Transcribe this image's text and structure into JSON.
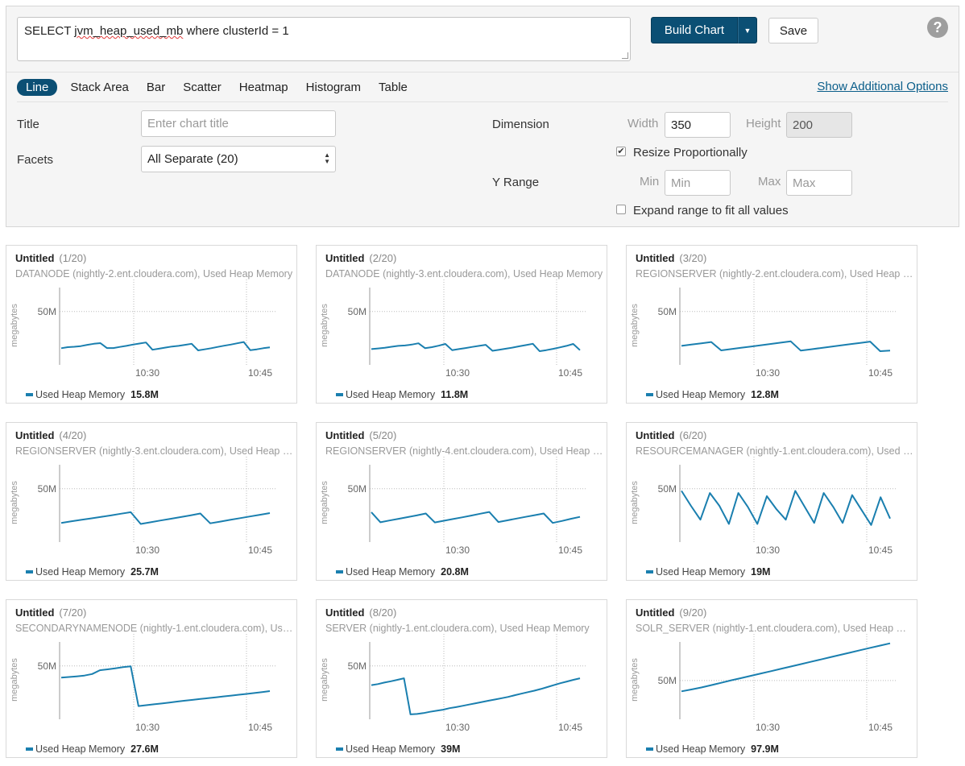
{
  "query": {
    "prefix": "SELECT ",
    "misspelled": "jvm_heap_used_mb",
    "suffix": " where clusterId = 1"
  },
  "toolbar": {
    "build_label": "Build Chart",
    "save_label": "Save",
    "help_glyph": "?"
  },
  "chart_types": [
    "Line",
    "Stack Area",
    "Bar",
    "Scatter",
    "Heatmap",
    "Histogram",
    "Table"
  ],
  "active_chart_type": "Line",
  "additional_options_label": "Show Additional Options",
  "options": {
    "title_label": "Title",
    "title_placeholder": "Enter chart title",
    "facets_label": "Facets",
    "facets_value": "All Separate (20)",
    "dimension_label": "Dimension",
    "width_label": "Width",
    "width_value": "350",
    "height_label": "Height",
    "height_value": "200",
    "resize_label": "Resize Proportionally",
    "resize_checked": true,
    "yrange_label": "Y Range",
    "min_label": "Min",
    "min_placeholder": "Min",
    "max_label": "Max",
    "max_placeholder": "Max",
    "expand_label": "Expand range to fit all values",
    "expand_checked": false
  },
  "colors": {
    "series": "#1a7faf",
    "accent": "#0b4f74",
    "link": "#0b5e8a"
  },
  "chart_data": [
    {
      "type": "line",
      "title": "Untitled",
      "index": "(1/20)",
      "subtitle": "DATANODE (nightly-2.ent.cloudera.com), Used Heap Memory",
      "ylabel": "megabytes",
      "ytick": "50M",
      "xticks": [
        "10:30",
        "10:45"
      ],
      "legend": "Used Heap Memory",
      "legend_value": "15.8M",
      "y": [
        15.6,
        16.6,
        17.0,
        17.6,
        18.8,
        19.8,
        20.4,
        15.8,
        15.8,
        16.8,
        17.8,
        19.0,
        20.0,
        21.0,
        14.2,
        15.2,
        16.2,
        17.2,
        17.8,
        18.8,
        19.8,
        13.6,
        14.6,
        15.6,
        16.8,
        18.0,
        19.0,
        20.2,
        21.4,
        13.8,
        14.6,
        15.6,
        16.4
      ]
    },
    {
      "type": "line",
      "title": "Untitled",
      "index": "(2/20)",
      "subtitle": "DATANODE (nightly-3.ent.cloudera.com), Used Heap Memory",
      "ylabel": "megabytes",
      "ytick": "50M",
      "xticks": [
        "10:30",
        "10:45"
      ],
      "legend": "Used Heap Memory",
      "legend_value": "11.8M",
      "y": [
        14.8,
        15.4,
        16.0,
        17.0,
        17.8,
        18.2,
        19.0,
        20.2,
        15.6,
        16.6,
        18.0,
        19.6,
        13.8,
        14.8,
        15.8,
        16.8,
        17.8,
        18.8,
        13.2,
        14.2,
        15.2,
        16.2,
        17.4,
        18.6,
        19.8,
        12.8,
        13.8,
        15.0,
        16.4,
        17.8,
        19.6,
        13.8
      ]
    },
    {
      "type": "line",
      "title": "Untitled",
      "index": "(3/20)",
      "subtitle": "REGIONSERVER (nightly-2.ent.cloudera.com), Used Heap Memory",
      "ylabel": "megabytes",
      "ytick": "50M",
      "xticks": [
        "10:30",
        "10:45"
      ],
      "legend": "Used Heap Memory",
      "legend_value": "12.8M",
      "y": [
        17.8,
        19.0,
        20.2,
        21.4,
        13.6,
        14.8,
        16.0,
        17.2,
        18.4,
        19.6,
        20.8,
        22.0,
        13.4,
        14.6,
        15.8,
        17.0,
        18.2,
        19.4,
        20.6,
        21.8,
        12.8,
        13.4
      ]
    },
    {
      "type": "line",
      "title": "Untitled",
      "index": "(4/20)",
      "subtitle": "REGIONSERVER (nightly-3.ent.cloudera.com), Used Heap Memory",
      "ylabel": "megabytes",
      "ytick": "50M",
      "xticks": [
        "10:30",
        "10:45"
      ],
      "legend": "Used Heap Memory",
      "legend_value": "25.7M",
      "y": [
        18.0,
        19.4,
        20.8,
        22.2,
        23.6,
        25.0,
        26.6,
        28.0,
        17.0,
        18.6,
        20.2,
        21.8,
        23.4,
        25.0,
        26.8,
        17.6,
        19.2,
        20.8,
        22.4,
        24.0,
        25.6,
        27.2
      ]
    },
    {
      "type": "line",
      "title": "Untitled",
      "index": "(5/20)",
      "subtitle": "REGIONSERVER (nightly-4.ent.cloudera.com), Used Heap Memory",
      "ylabel": "megabytes",
      "ytick": "50M",
      "xticks": [
        "10:30",
        "10:45"
      ],
      "legend": "Used Heap Memory",
      "legend_value": "20.8M",
      "y": [
        28.0,
        18.6,
        20.2,
        21.8,
        23.4,
        25.0,
        26.8,
        18.4,
        20.0,
        21.6,
        23.2,
        24.8,
        26.6,
        28.2,
        18.8,
        20.4,
        22.0,
        23.6,
        25.2,
        26.8,
        18.0,
        19.8,
        21.8,
        23.6
      ]
    },
    {
      "type": "line",
      "title": "Untitled",
      "index": "(6/20)",
      "subtitle": "RESOURCEMANAGER (nightly-1.ent.cloudera.com), Used Heap Memory",
      "ylabel": "megabytes",
      "ytick": "50M",
      "xticks": [
        "10:30",
        "10:45"
      ],
      "legend": "Used Heap Memory",
      "legend_value": "19M",
      "y": [
        48.0,
        34.0,
        21.0,
        46.0,
        34.0,
        17.0,
        46.0,
        33.0,
        17.0,
        43.0,
        31.0,
        21.0,
        48.0,
        33.0,
        18.0,
        46.0,
        33.0,
        18.0,
        44.0,
        30.0,
        16.0,
        42.0,
        22.0
      ]
    },
    {
      "type": "line",
      "title": "Untitled",
      "index": "(7/20)",
      "subtitle": "SECONDARYNAMENODE (nightly-1.ent.cloudera.com), Used Heap Memory",
      "ylabel": "megabytes",
      "ytick": "50M",
      "xticks": [
        "10:30",
        "10:45"
      ],
      "legend": "Used Heap Memory",
      "legend_value": "27.6M",
      "y": [
        39.0,
        39.6,
        40.2,
        41.0,
        42.4,
        46.0,
        46.8,
        47.8,
        48.8,
        49.6,
        12.4,
        13.2,
        14.0,
        14.8,
        15.6,
        16.6,
        17.4,
        18.2,
        19.0,
        19.8,
        20.6,
        21.4,
        22.2,
        23.0,
        23.8,
        24.6,
        25.4,
        26.4
      ]
    },
    {
      "type": "line",
      "title": "Untitled",
      "index": "(8/20)",
      "subtitle": "SERVER (nightly-1.ent.cloudera.com), Used Heap Memory",
      "ylabel": "megabytes",
      "ytick": "50M",
      "xticks": [
        "10:30",
        "10:45"
      ],
      "legend": "Used Heap Memory",
      "legend_value": "39M",
      "y": [
        32.0,
        33.0,
        34.4,
        35.6,
        37.0,
        38.4,
        4.6,
        5.0,
        5.8,
        7.0,
        8.0,
        9.0,
        10.4,
        11.4,
        12.6,
        13.8,
        15.0,
        16.2,
        17.4,
        18.6,
        19.8,
        21.0,
        22.6,
        24.0,
        25.4,
        26.8,
        28.4,
        30.2,
        32.0,
        33.8,
        35.4,
        37.0,
        38.4
      ]
    },
    {
      "type": "line",
      "title": "Untitled",
      "index": "(9/20)",
      "subtitle": "SOLR_SERVER (nightly-1.ent.cloudera.com), Used Heap Memory",
      "ylabel": "megabytes",
      "ytick": "50M",
      "xticks": [
        "10:30",
        "10:45"
      ],
      "legend": "Used Heap Memory",
      "legend_value": "97.9M",
      "y": [
        36.0,
        38.4,
        41.0,
        44.0,
        47.0,
        50.2,
        53.0,
        56.0,
        59.0,
        62.0,
        65.0,
        68.0,
        71.0,
        74.0,
        77.0,
        80.0,
        83.0,
        86.0,
        89.0,
        92.0,
        95.0,
        97.9
      ]
    }
  ]
}
